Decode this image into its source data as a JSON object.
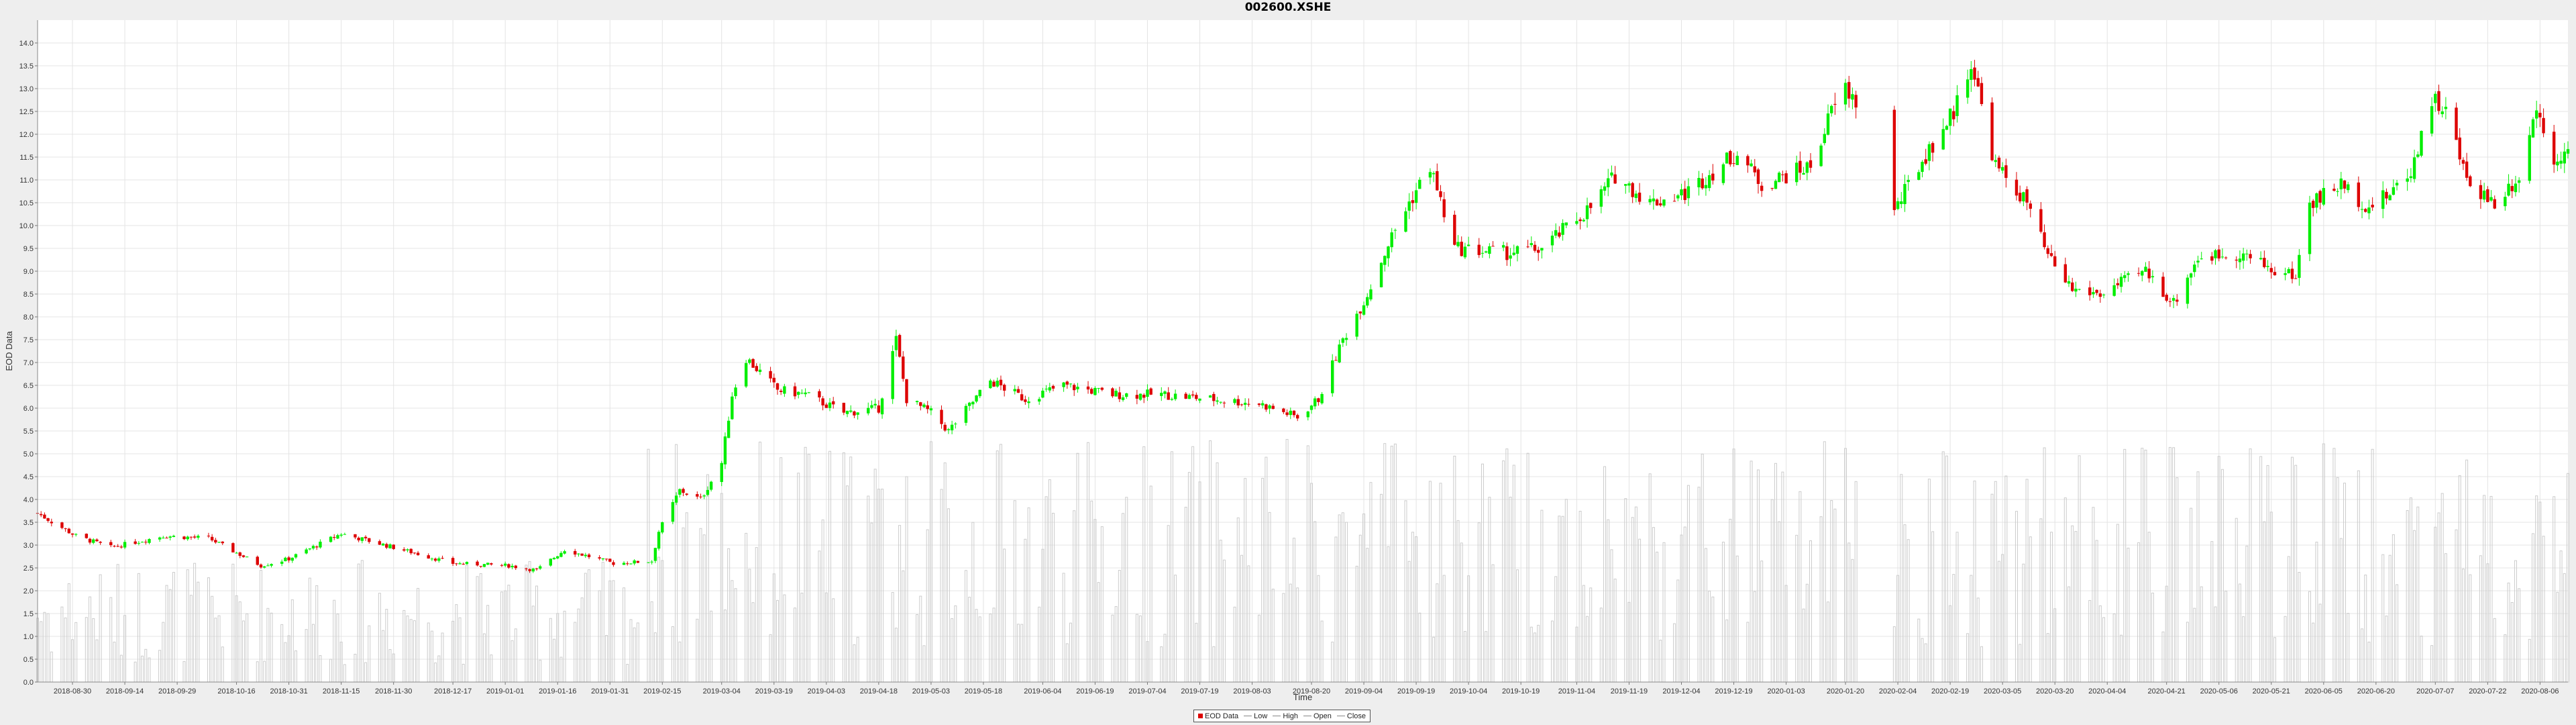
{
  "chart_data": {
    "type": "candlestick",
    "title": "002600.XSHE",
    "xlabel": "Time",
    "ylabel": "EOD Data",
    "ylim": [
      0,
      14.5
    ],
    "yticks": [
      "0.0",
      "0.5",
      "1.0",
      "1.5",
      "2.0",
      "2.5",
      "3.0",
      "3.5",
      "4.0",
      "4.5",
      "5.0",
      "5.5",
      "6.0",
      "6.5",
      "7.0",
      "7.5",
      "8.0",
      "8.5",
      "9.0",
      "9.5",
      "10.0",
      "10.5",
      "11.0",
      "11.5",
      "12.0",
      "12.5",
      "13.0",
      "13.5",
      "14.0"
    ],
    "xrange": [
      "2018-08-20",
      "2020-08-14"
    ],
    "xticks": [
      "2018-08-30",
      "2018-09-14",
      "2018-09-29",
      "2018-10-16",
      "2018-10-31",
      "2018-11-15",
      "2018-11-30",
      "2018-12-17",
      "2019-01-01",
      "2019-01-16",
      "2019-01-31",
      "2019-02-15",
      "2019-03-04",
      "2019-03-19",
      "2019-04-03",
      "2019-04-18",
      "2019-05-03",
      "2019-05-18",
      "2019-06-04",
      "2019-06-19",
      "2019-07-04",
      "2019-07-19",
      "2019-08-03",
      "2019-08-20",
      "2019-09-04",
      "2019-09-19",
      "2019-10-04",
      "2019-10-19",
      "2019-11-04",
      "2019-11-19",
      "2019-12-04",
      "2019-12-19",
      "2020-01-03",
      "2020-01-20",
      "2020-02-04",
      "2020-02-19",
      "2020-03-05",
      "2020-03-20",
      "2020-04-04",
      "2020-04-21",
      "2020-05-06",
      "2020-05-21",
      "2020-06-05",
      "2020-06-20",
      "2020-07-07",
      "2020-07-22",
      "2020-08-06"
    ],
    "grid": true,
    "legend": [
      "EOD Data",
      "Low",
      "High",
      "Open",
      "Close"
    ],
    "legend_position": "bottom-center",
    "colors": {
      "up": "#00ee00",
      "down": "#dd0000",
      "volume": "#cccccc",
      "grid": "#e4e4e4"
    },
    "close_anchors": [
      [
        "2018-08-20",
        3.7
      ],
      [
        "2018-08-31",
        3.2
      ],
      [
        "2018-09-10",
        2.95
      ],
      [
        "2018-09-25",
        3.2
      ],
      [
        "2018-10-08",
        3.15
      ],
      [
        "2018-10-23",
        2.55
      ],
      [
        "2018-10-31",
        2.7
      ],
      [
        "2018-11-15",
        3.25
      ],
      [
        "2018-11-30",
        2.95
      ],
      [
        "2018-12-17",
        2.6
      ],
      [
        "2019-01-02",
        2.55
      ],
      [
        "2019-01-10",
        2.45
      ],
      [
        "2019-01-18",
        2.9
      ],
      [
        "2019-02-01",
        2.6
      ],
      [
        "2019-02-12",
        2.65
      ],
      [
        "2019-02-14",
        3.3
      ],
      [
        "2019-02-20",
        4.2
      ],
      [
        "2019-02-26",
        4.0
      ],
      [
        "2019-03-04",
        4.8
      ],
      [
        "2019-03-07",
        6.3
      ],
      [
        "2019-03-11",
        7.1
      ],
      [
        "2019-03-20",
        6.4
      ],
      [
        "2019-03-28",
        6.3
      ],
      [
        "2019-04-08",
        5.9
      ],
      [
        "2019-04-18",
        6.0
      ],
      [
        "2019-04-23",
        7.5
      ],
      [
        "2019-04-26",
        6.2
      ],
      [
        "2019-05-03",
        5.9
      ],
      [
        "2019-05-08",
        5.5
      ],
      [
        "2019-05-20",
        6.6
      ],
      [
        "2019-05-30",
        6.2
      ],
      [
        "2019-06-10",
        6.5
      ],
      [
        "2019-06-24",
        6.3
      ],
      [
        "2019-07-08",
        6.3
      ],
      [
        "2019-08-05",
        6.1
      ],
      [
        "2019-08-16",
        5.8
      ],
      [
        "2019-08-22",
        6.2
      ],
      [
        "2019-08-29",
        7.5
      ],
      [
        "2019-09-05",
        8.5
      ],
      [
        "2019-09-11",
        9.6
      ],
      [
        "2019-09-17",
        10.5
      ],
      [
        "2019-09-23",
        11.3
      ],
      [
        "2019-09-30",
        9.5
      ],
      [
        "2019-10-15",
        9.4
      ],
      [
        "2019-10-25",
        9.5
      ],
      [
        "2019-11-08",
        10.4
      ],
      [
        "2019-11-15",
        11.1
      ],
      [
        "2019-11-25",
        10.5
      ],
      [
        "2019-12-05",
        10.7
      ],
      [
        "2019-12-20",
        11.6
      ],
      [
        "2019-12-27",
        10.9
      ],
      [
        "2020-01-10",
        11.3
      ],
      [
        "2020-01-16",
        12.5
      ],
      [
        "2020-01-20",
        13.0
      ],
      [
        "2020-01-23",
        12.7
      ],
      [
        "2020-02-03",
        10.3
      ],
      [
        "2020-02-10",
        11.3
      ],
      [
        "2020-02-20",
        12.5
      ],
      [
        "2020-02-25",
        13.6
      ],
      [
        "2020-03-03",
        11.3
      ],
      [
        "2020-03-12",
        10.5
      ],
      [
        "2020-03-18",
        9.3
      ],
      [
        "2020-03-25",
        8.6
      ],
      [
        "2020-04-02",
        8.5
      ],
      [
        "2020-04-15",
        9.0
      ],
      [
        "2020-04-23",
        8.3
      ],
      [
        "2020-04-30",
        9.3
      ],
      [
        "2020-05-12",
        9.4
      ],
      [
        "2020-05-22",
        9.0
      ],
      [
        "2020-05-28",
        8.9
      ],
      [
        "2020-06-01",
        10.5
      ],
      [
        "2020-06-10",
        10.9
      ],
      [
        "2020-06-18",
        10.4
      ],
      [
        "2020-06-24",
        10.7
      ],
      [
        "2020-06-30",
        11.2
      ],
      [
        "2020-07-06",
        12.8
      ],
      [
        "2020-07-10",
        12.5
      ],
      [
        "2020-07-16",
        11.0
      ],
      [
        "2020-07-24",
        10.5
      ],
      [
        "2020-07-31",
        11.1
      ],
      [
        "2020-08-05",
        12.6
      ],
      [
        "2020-08-10",
        11.5
      ],
      [
        "2020-08-14",
        11.6
      ]
    ]
  }
}
